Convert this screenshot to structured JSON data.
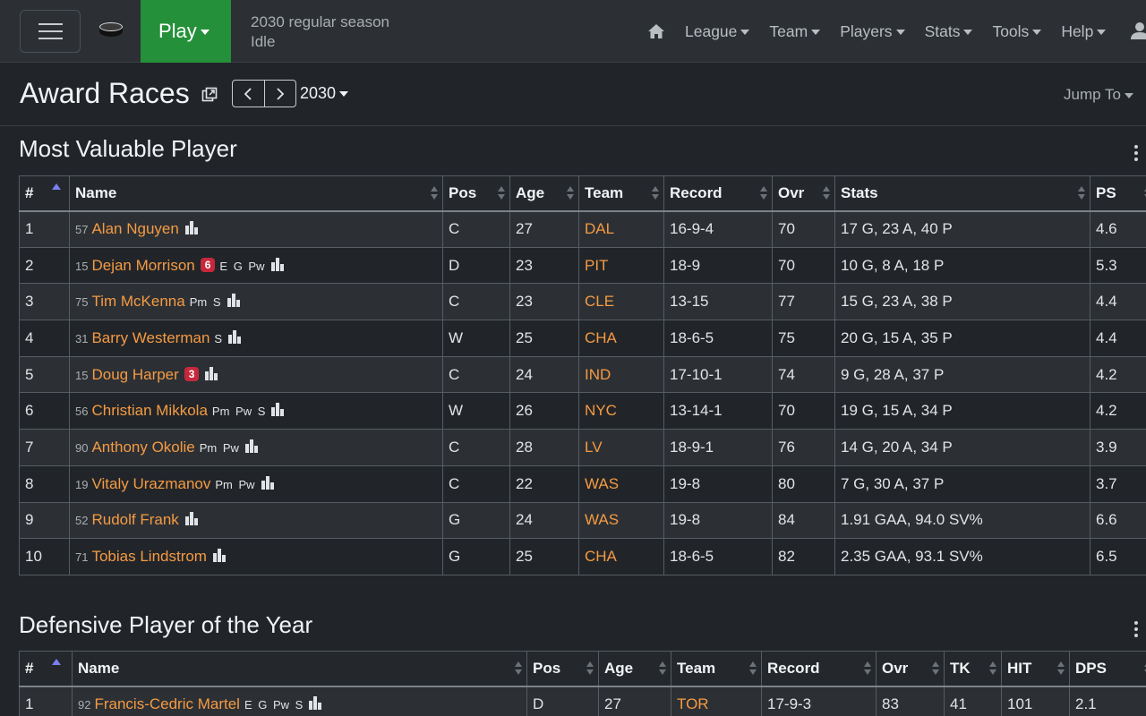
{
  "navbar": {
    "play_label": "Play",
    "season_line1": "2030 regular season",
    "season_line2": "Idle",
    "links": [
      "League",
      "Team",
      "Players",
      "Stats",
      "Tools",
      "Help"
    ]
  },
  "header": {
    "title": "Award Races",
    "year": "2030",
    "jump_to": "Jump To"
  },
  "mvp": {
    "title": "Most Valuable Player",
    "columns": [
      "#",
      "Name",
      "Pos",
      "Age",
      "Team",
      "Record",
      "Ovr",
      "Stats",
      "PS"
    ],
    "rows": [
      {
        "rank": "1",
        "jersey": "57",
        "name": "Alan Nguyen",
        "badge": "",
        "skills": "",
        "pos": "C",
        "age": "27",
        "team": "DAL",
        "record": "16-9-4",
        "ovr": "70",
        "stats": "17 G, 23 A, 40 P",
        "ps": "4.6"
      },
      {
        "rank": "2",
        "jersey": "15",
        "name": "Dejan Morrison",
        "badge": "6",
        "skills": "E G Pw",
        "pos": "D",
        "age": "23",
        "team": "PIT",
        "record": "18-9",
        "ovr": "70",
        "stats": "10 G, 8 A, 18 P",
        "ps": "5.3"
      },
      {
        "rank": "3",
        "jersey": "75",
        "name": "Tim McKenna",
        "badge": "",
        "skills": "Pm S",
        "pos": "C",
        "age": "23",
        "team": "CLE",
        "record": "13-15",
        "ovr": "77",
        "stats": "15 G, 23 A, 38 P",
        "ps": "4.4"
      },
      {
        "rank": "4",
        "jersey": "31",
        "name": "Barry Westerman",
        "badge": "",
        "skills": "S",
        "pos": "W",
        "age": "25",
        "team": "CHA",
        "record": "18-6-5",
        "ovr": "75",
        "stats": "20 G, 15 A, 35 P",
        "ps": "4.4"
      },
      {
        "rank": "5",
        "jersey": "15",
        "name": "Doug Harper",
        "badge": "3",
        "skills": "",
        "pos": "C",
        "age": "24",
        "team": "IND",
        "record": "17-10-1",
        "ovr": "74",
        "stats": "9 G, 28 A, 37 P",
        "ps": "4.2"
      },
      {
        "rank": "6",
        "jersey": "56",
        "name": "Christian Mikkola",
        "badge": "",
        "skills": "Pm Pw S",
        "pos": "W",
        "age": "26",
        "team": "NYC",
        "record": "13-14-1",
        "ovr": "70",
        "stats": "19 G, 15 A, 34 P",
        "ps": "4.2"
      },
      {
        "rank": "7",
        "jersey": "90",
        "name": "Anthony Okolie",
        "badge": "",
        "skills": "Pm Pw",
        "pos": "C",
        "age": "28",
        "team": "LV",
        "record": "18-9-1",
        "ovr": "76",
        "stats": "14 G, 20 A, 34 P",
        "ps": "3.9"
      },
      {
        "rank": "8",
        "jersey": "19",
        "name": "Vitaly Urazmanov",
        "badge": "",
        "skills": "Pm Pw",
        "pos": "C",
        "age": "22",
        "team": "WAS",
        "record": "19-8",
        "ovr": "80",
        "stats": "7 G, 30 A, 37 P",
        "ps": "3.7"
      },
      {
        "rank": "9",
        "jersey": "52",
        "name": "Rudolf Frank",
        "badge": "",
        "skills": "",
        "pos": "G",
        "age": "24",
        "team": "WAS",
        "record": "19-8",
        "ovr": "84",
        "stats": "1.91 GAA, 94.0 SV%",
        "ps": "6.6"
      },
      {
        "rank": "10",
        "jersey": "71",
        "name": "Tobias Lindstrom",
        "badge": "",
        "skills": "",
        "pos": "G",
        "age": "25",
        "team": "CHA",
        "record": "18-6-5",
        "ovr": "82",
        "stats": "2.35 GAA, 93.1 SV%",
        "ps": "6.5"
      }
    ]
  },
  "dpoy": {
    "title": "Defensive Player of the Year",
    "columns": [
      "#",
      "Name",
      "Pos",
      "Age",
      "Team",
      "Record",
      "Ovr",
      "TK",
      "HIT",
      "DPS"
    ],
    "rows": [
      {
        "rank": "1",
        "jersey": "92",
        "name": "Francis-Cedric Martel",
        "skills": "E G Pw S",
        "pos": "D",
        "age": "27",
        "team": "TOR",
        "record": "17-9-3",
        "ovr": "83",
        "tk": "41",
        "hit": "101",
        "dps": "2.1"
      }
    ]
  },
  "colors": {
    "play": "#25903a",
    "link": "#f59a43",
    "badge": "#c6283b",
    "sort_active": "#7b7ff0"
  },
  "icons": [
    "menu-icon",
    "puck-logo",
    "home-icon",
    "user-icon",
    "external-link-icon",
    "chevron-left-icon",
    "chevron-right-icon",
    "chart-icon",
    "kebab-icon",
    "sort-icon"
  ]
}
